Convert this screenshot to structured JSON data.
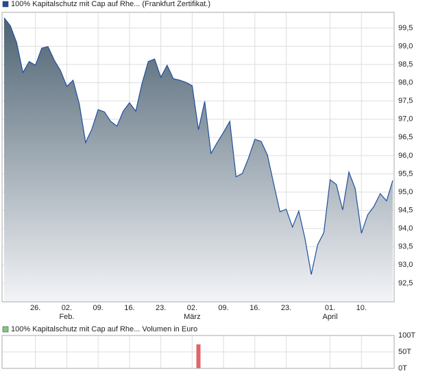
{
  "chart_data": [
    {
      "type": "area",
      "title": "100% Kapitalschutz mit Cap  auf Rhe... (Frankfurt Zertifikat.)",
      "color": "#1f4e9c",
      "legend_color": "#1f4e9c",
      "categories": [
        null,
        null,
        null,
        null,
        null,
        "26.",
        null,
        null,
        null,
        null,
        "02.",
        null,
        null,
        null,
        null,
        "09.",
        null,
        null,
        null,
        null,
        "16.",
        null,
        null,
        null,
        null,
        "23.",
        null,
        null,
        null,
        null,
        "02.",
        null,
        null,
        null,
        null,
        "09.",
        null,
        null,
        null,
        null,
        "16.",
        null,
        null,
        null,
        null,
        "23.",
        null,
        null,
        null,
        null,
        null,
        null,
        "01.",
        null,
        null,
        null,
        null,
        "10.",
        null,
        null,
        null,
        null,
        null
      ],
      "month_labels": [
        null,
        null,
        null,
        null,
        null,
        null,
        null,
        null,
        null,
        null,
        "Feb.",
        null,
        null,
        null,
        null,
        null,
        null,
        null,
        null,
        null,
        null,
        null,
        null,
        null,
        null,
        null,
        null,
        null,
        null,
        null,
        "März",
        null,
        null,
        null,
        null,
        null,
        null,
        null,
        null,
        null,
        null,
        null,
        null,
        null,
        null,
        null,
        null,
        null,
        null,
        null,
        null,
        null,
        "April",
        null,
        null,
        null,
        null,
        null,
        null,
        null,
        null,
        null,
        null
      ],
      "values": [
        99.78,
        99.56,
        99.1,
        98.28,
        98.58,
        98.48,
        98.95,
        98.99,
        98.62,
        98.33,
        97.9,
        98.07,
        97.41,
        96.36,
        96.73,
        97.26,
        97.2,
        96.94,
        96.81,
        97.22,
        97.45,
        97.22,
        97.98,
        98.58,
        98.65,
        98.15,
        98.48,
        98.11,
        98.07,
        98.01,
        97.92,
        96.71,
        97.49,
        96.06,
        96.36,
        96.64,
        96.94,
        95.42,
        95.51,
        95.94,
        96.45,
        96.39,
        96.02,
        95.23,
        94.46,
        94.53,
        94.04,
        94.48,
        93.72,
        92.74,
        93.55,
        93.89,
        95.34,
        95.21,
        94.51,
        95.55,
        95.1,
        93.87,
        94.38,
        94.61,
        94.96,
        94.76,
        95.32
      ],
      "ylim": [
        91.99,
        99.93
      ],
      "yticks": [
        {
          "value": 92.5,
          "label": "92,5"
        },
        {
          "value": 93,
          "label": "93,0"
        },
        {
          "value": 93.5,
          "label": "93,5"
        },
        {
          "value": 94,
          "label": "94,0"
        },
        {
          "value": 94.5,
          "label": "94,5"
        },
        {
          "value": 95,
          "label": "95,0"
        },
        {
          "value": 95.5,
          "label": "95,5"
        },
        {
          "value": 96,
          "label": "96,0"
        },
        {
          "value": 96.5,
          "label": "96,5"
        },
        {
          "value": 97,
          "label": "97,0"
        },
        {
          "value": 97.5,
          "label": "97,5"
        },
        {
          "value": 98,
          "label": "98,0"
        },
        {
          "value": 98.5,
          "label": "98,5"
        },
        {
          "value": 99,
          "label": "99,0"
        },
        {
          "value": 99.5,
          "label": "99,5"
        }
      ],
      "grid": true
    },
    {
      "type": "bar",
      "title": "100% Kapitalschutz mit Cap  auf Rhe... Volumen in Euro",
      "color": "#e06666",
      "legend_color": "#7dc97d",
      "values": [
        0,
        0,
        0,
        0,
        0,
        0,
        0,
        0,
        0,
        0,
        0,
        0,
        0,
        0,
        0,
        0,
        0,
        0,
        0,
        0,
        0,
        0,
        0,
        0,
        0,
        0,
        0,
        0,
        0,
        0,
        0,
        73000,
        0,
        0,
        0,
        0,
        0,
        0,
        0,
        0,
        0,
        0,
        0,
        0,
        0,
        0,
        0,
        0,
        0,
        0,
        0,
        0,
        0,
        0,
        0,
        0,
        0,
        0,
        0,
        0,
        0,
        0,
        0
      ],
      "ylim": [
        0,
        100000
      ],
      "yticks": [
        {
          "value": 0,
          "label": "0T"
        },
        {
          "value": 50000,
          "label": "50T"
        },
        {
          "value": 100000,
          "label": "100T"
        }
      ],
      "grid": true
    }
  ]
}
